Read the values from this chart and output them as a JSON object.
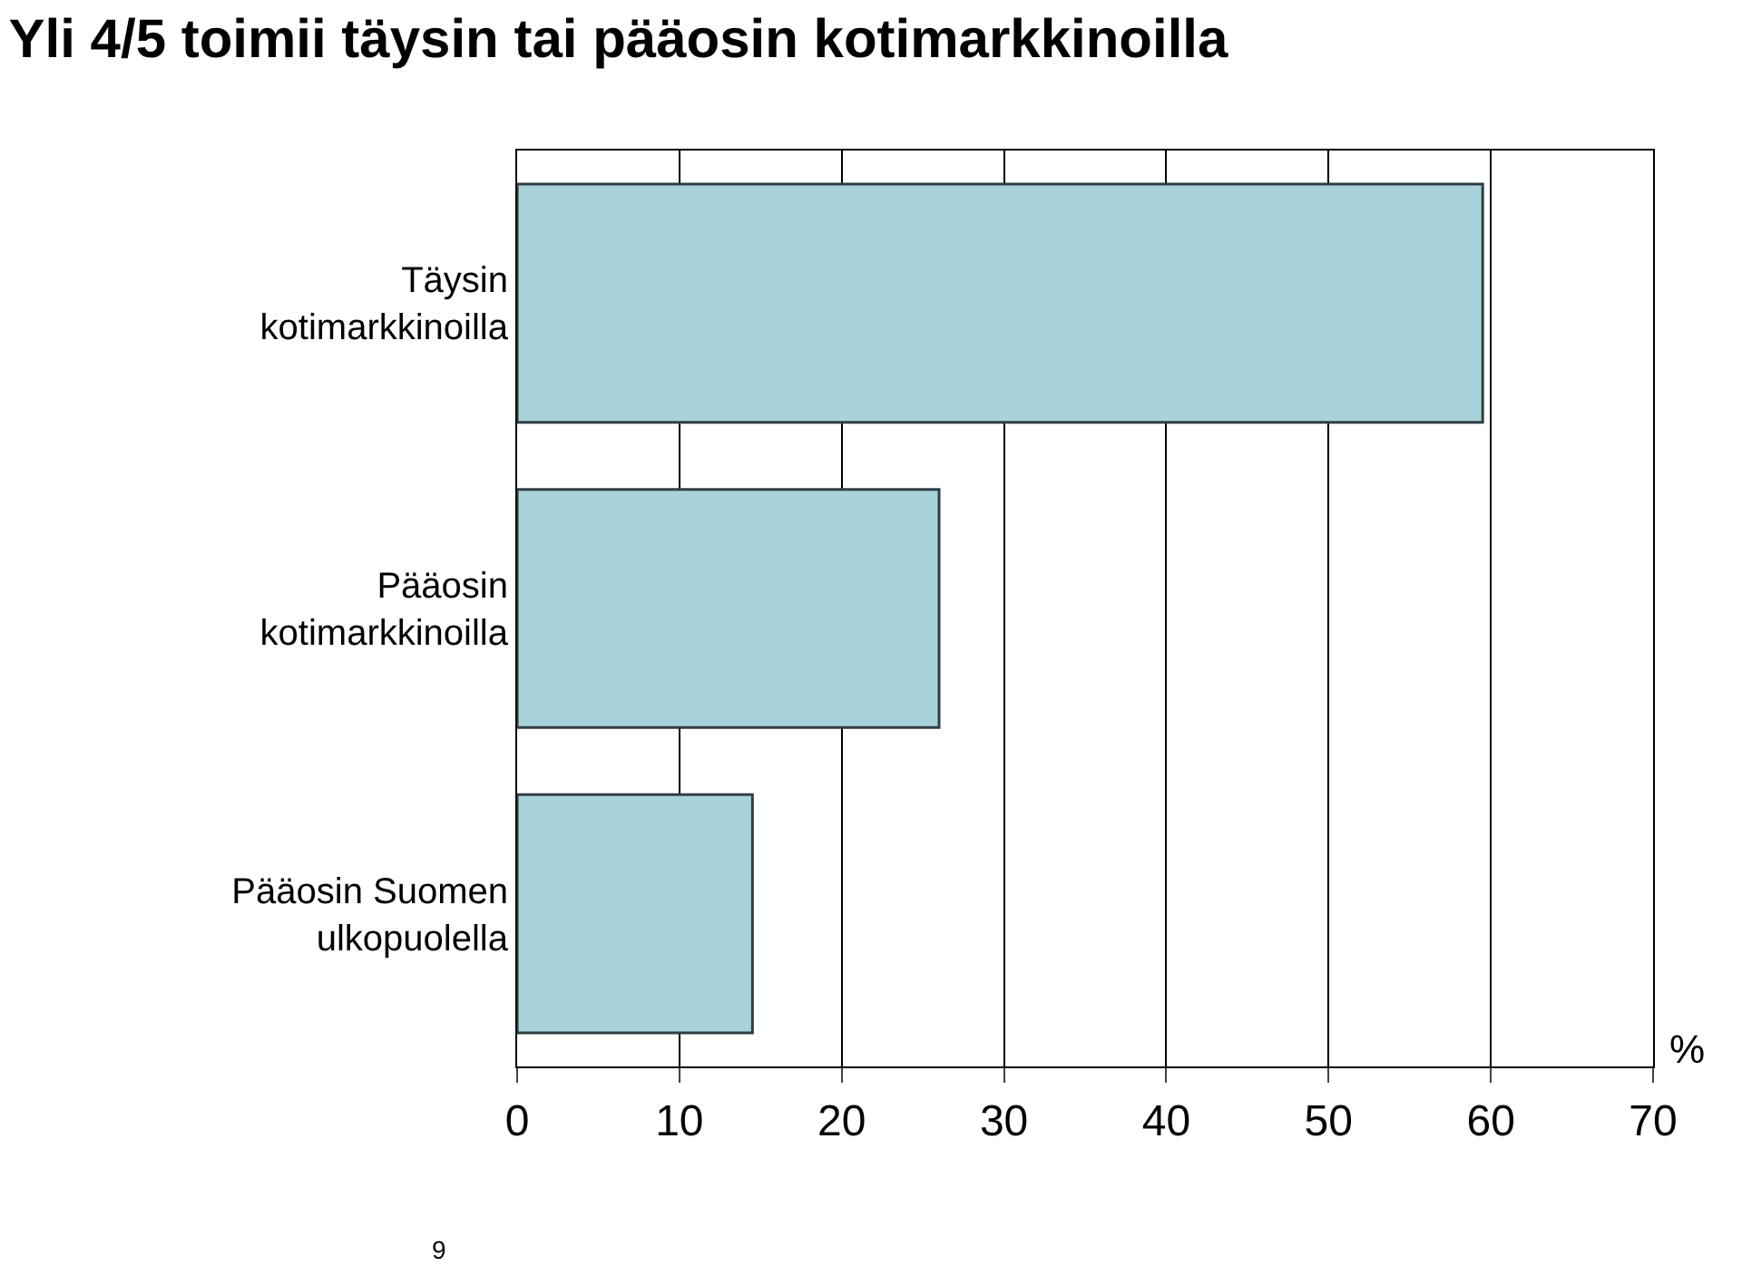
{
  "chart_data": {
    "type": "bar",
    "orientation": "horizontal",
    "title": "Yli 4/5 toimii täysin tai pääosin kotimarkkinoilla",
    "xlabel": "%",
    "categories": [
      "Täysin kotimarkkinoilla",
      "Pääosin kotimarkkinoilla",
      "Pääosin Suomen ulkopuolella"
    ],
    "values": [
      59.5,
      26,
      14.5
    ],
    "color": "#a9d3da",
    "xlim": [
      0,
      70
    ],
    "xticks": [
      0,
      10,
      20,
      30,
      40,
      50,
      60,
      70
    ],
    "grid": "x",
    "annotations": [
      "9"
    ]
  }
}
